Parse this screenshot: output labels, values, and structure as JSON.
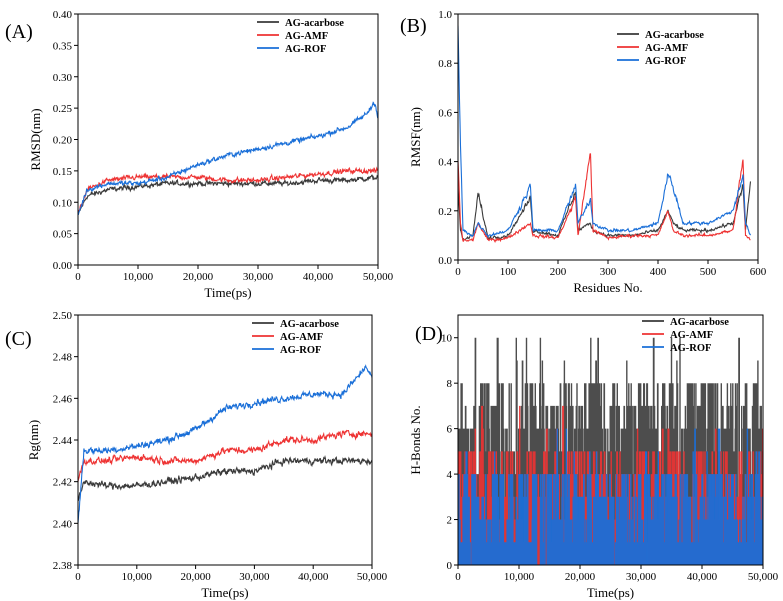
{
  "colors": {
    "acarbose": "#3a3a3a",
    "amf": "#ee3333",
    "rof": "#1a6fd8"
  },
  "chart_data": [
    {
      "panel": "(A)",
      "type": "line",
      "xlabel": "Time(ps)",
      "ylabel": "RMSD(nm)",
      "xlim": [
        0,
        50000
      ],
      "ylim": [
        0,
        0.4
      ],
      "x_ticks": [
        "0",
        "10,000",
        "20,000",
        "30,000",
        "40,000",
        "50,000"
      ],
      "y_ticks": [
        "0.00",
        "0.05",
        "0.10",
        "0.15",
        "0.20",
        "0.25",
        "0.30",
        "0.35",
        "0.40"
      ],
      "legend": "top-right",
      "series": [
        {
          "name": "AG-acarbose",
          "color": "#3a3a3a",
          "x": [
            0,
            1500,
            5000,
            10000,
            15000,
            20000,
            25000,
            30000,
            35000,
            40000,
            45000,
            50000
          ],
          "y": [
            0.08,
            0.11,
            0.12,
            0.125,
            0.13,
            0.13,
            0.13,
            0.13,
            0.13,
            0.135,
            0.135,
            0.14
          ]
        },
        {
          "name": "AG-AMF",
          "color": "#ee3333",
          "x": [
            0,
            1500,
            5000,
            10000,
            15000,
            20000,
            25000,
            30000,
            35000,
            40000,
            45000,
            50000
          ],
          "y": [
            0.08,
            0.12,
            0.135,
            0.14,
            0.14,
            0.14,
            0.135,
            0.135,
            0.14,
            0.145,
            0.15,
            0.15
          ]
        },
        {
          "name": "AG-ROF",
          "color": "#1a6fd8",
          "x": [
            0,
            1500,
            5000,
            10000,
            15000,
            20000,
            25000,
            30000,
            35000,
            40000,
            45000,
            48000,
            49500,
            50000
          ],
          "y": [
            0.08,
            0.12,
            0.13,
            0.13,
            0.14,
            0.16,
            0.175,
            0.185,
            0.195,
            0.205,
            0.22,
            0.24,
            0.26,
            0.235
          ]
        }
      ]
    },
    {
      "panel": "(B)",
      "type": "line",
      "xlabel": "Residues No.",
      "ylabel": "RMSF(nm)",
      "xlim": [
        0,
        600
      ],
      "ylim": [
        0,
        1.0
      ],
      "x_ticks": [
        "0",
        "100",
        "200",
        "300",
        "400",
        "500",
        "600"
      ],
      "y_ticks": [
        "0.0",
        "0.2",
        "0.4",
        "0.6",
        "0.8",
        "1.0"
      ],
      "legend": "top-right",
      "series": [
        {
          "name": "AG-acarbose",
          "color": "#3a3a3a",
          "x": [
            0,
            5,
            10,
            30,
            40,
            60,
            100,
            145,
            150,
            200,
            235,
            240,
            265,
            270,
            300,
            350,
            400,
            420,
            430,
            450,
            500,
            550,
            570,
            575,
            585
          ],
          "y": [
            0.3,
            0.12,
            0.08,
            0.1,
            0.27,
            0.09,
            0.1,
            0.25,
            0.12,
            0.1,
            0.28,
            0.12,
            0.15,
            0.12,
            0.1,
            0.1,
            0.12,
            0.2,
            0.15,
            0.12,
            0.12,
            0.15,
            0.3,
            0.12,
            0.32
          ]
        },
        {
          "name": "AG-AMF",
          "color": "#ee3333",
          "x": [
            0,
            5,
            10,
            30,
            40,
            60,
            100,
            145,
            150,
            200,
            235,
            240,
            265,
            270,
            300,
            350,
            400,
            420,
            430,
            450,
            500,
            550,
            570,
            575,
            585
          ],
          "y": [
            0.4,
            0.15,
            0.08,
            0.08,
            0.15,
            0.08,
            0.09,
            0.15,
            0.1,
            0.09,
            0.25,
            0.1,
            0.44,
            0.12,
            0.09,
            0.1,
            0.1,
            0.2,
            0.12,
            0.1,
            0.1,
            0.12,
            0.41,
            0.1,
            0.08
          ]
        },
        {
          "name": "AG-ROF",
          "color": "#1a6fd8",
          "x": [
            0,
            5,
            10,
            30,
            40,
            60,
            100,
            145,
            150,
            200,
            235,
            240,
            265,
            270,
            300,
            350,
            400,
            420,
            430,
            450,
            500,
            550,
            570,
            575,
            585
          ],
          "y": [
            0.95,
            0.46,
            0.12,
            0.1,
            0.15,
            0.1,
            0.12,
            0.3,
            0.12,
            0.12,
            0.3,
            0.15,
            0.25,
            0.15,
            0.12,
            0.12,
            0.15,
            0.35,
            0.3,
            0.15,
            0.15,
            0.2,
            0.35,
            0.15,
            0.1
          ]
        }
      ]
    },
    {
      "panel": "(C)",
      "type": "line",
      "xlabel": "Time(ps)",
      "ylabel": "Rg(nm)",
      "xlim": [
        0,
        50000
      ],
      "ylim": [
        2.38,
        2.5
      ],
      "x_ticks": [
        "0",
        "10,000",
        "20,000",
        "30,000",
        "40,000",
        "50,000"
      ],
      "y_ticks": [
        "2.38",
        "2.40",
        "2.42",
        "2.44",
        "2.46",
        "2.48",
        "2.50"
      ],
      "legend": "top-right",
      "series": [
        {
          "name": "AG-acarbose",
          "color": "#3a3a3a",
          "x": [
            0,
            1000,
            5000,
            10000,
            15000,
            20000,
            25000,
            30000,
            35000,
            40000,
            45000,
            50000
          ],
          "y": [
            2.41,
            2.42,
            2.418,
            2.418,
            2.42,
            2.422,
            2.425,
            2.425,
            2.43,
            2.43,
            2.43,
            2.43
          ]
        },
        {
          "name": "AG-AMF",
          "color": "#ee3333",
          "x": [
            0,
            1000,
            5000,
            10000,
            15000,
            20000,
            25000,
            30000,
            35000,
            40000,
            45000,
            50000
          ],
          "y": [
            2.42,
            2.43,
            2.43,
            2.432,
            2.43,
            2.43,
            2.435,
            2.435,
            2.44,
            2.44,
            2.443,
            2.443
          ]
        },
        {
          "name": "AG-ROF",
          "color": "#1a6fd8",
          "x": [
            0,
            1000,
            5000,
            10000,
            15000,
            20000,
            25000,
            30000,
            35000,
            40000,
            45000,
            49000,
            50000
          ],
          "y": [
            2.4,
            2.435,
            2.435,
            2.437,
            2.44,
            2.445,
            2.455,
            2.458,
            2.46,
            2.462,
            2.462,
            2.475,
            2.47
          ]
        }
      ]
    },
    {
      "panel": "(D)",
      "type": "line",
      "xlabel": "Time(ps)",
      "ylabel": "H-Bonds No.",
      "xlim": [
        0,
        50000
      ],
      "ylim": [
        0,
        11
      ],
      "x_ticks": [
        "0",
        "10,000",
        "20,000",
        "30,000",
        "40,000",
        "50,000"
      ],
      "y_ticks": [
        "0",
        "2",
        "4",
        "6",
        "8",
        "10"
      ],
      "legend": "top-right",
      "series": [
        {
          "name": "AG-acarbose",
          "color": "#3a3a3a",
          "typical_range": [
            4,
            8
          ],
          "max": 10
        },
        {
          "name": "AG-AMF",
          "color": "#ee3333",
          "typical_range": [
            1,
            5
          ],
          "max": 7
        },
        {
          "name": "AG-ROF",
          "color": "#1a6fd8",
          "typical_range": [
            1,
            4
          ],
          "max": 6
        }
      ]
    }
  ]
}
